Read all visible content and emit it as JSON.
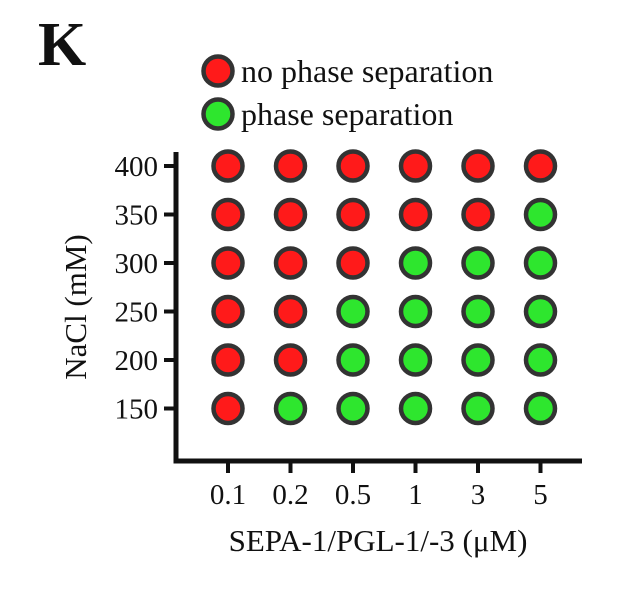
{
  "panel_label": "K",
  "colors": {
    "no_phase_separation": "#ff1a1a",
    "phase_separation": "#2ee62e",
    "marker_edge": "#333333",
    "axis": "#111111"
  },
  "chart_data": {
    "type": "scatter",
    "title": "",
    "xlabel": "SEPA-1/PGL-1/-3 (μM)",
    "ylabel": "NaCl (mM)",
    "x_categories": [
      "0.1",
      "0.2",
      "0.5",
      "1",
      "3",
      "5"
    ],
    "y_categories": [
      "400",
      "350",
      "300",
      "250",
      "200",
      "150"
    ],
    "legend": {
      "placement": "top",
      "entries": [
        {
          "key": "no",
          "label": "no phase separation",
          "color": "#ff1a1a"
        },
        {
          "key": "yes",
          "label": "phase separation",
          "color": "#2ee62e"
        }
      ]
    },
    "grid": false,
    "points": [
      {
        "x": "0.1",
        "y": "400",
        "phase_separation": false
      },
      {
        "x": "0.2",
        "y": "400",
        "phase_separation": false
      },
      {
        "x": "0.5",
        "y": "400",
        "phase_separation": false
      },
      {
        "x": "1",
        "y": "400",
        "phase_separation": false
      },
      {
        "x": "3",
        "y": "400",
        "phase_separation": false
      },
      {
        "x": "5",
        "y": "400",
        "phase_separation": false
      },
      {
        "x": "0.1",
        "y": "350",
        "phase_separation": false
      },
      {
        "x": "0.2",
        "y": "350",
        "phase_separation": false
      },
      {
        "x": "0.5",
        "y": "350",
        "phase_separation": false
      },
      {
        "x": "1",
        "y": "350",
        "phase_separation": false
      },
      {
        "x": "3",
        "y": "350",
        "phase_separation": false
      },
      {
        "x": "5",
        "y": "350",
        "phase_separation": true
      },
      {
        "x": "0.1",
        "y": "300",
        "phase_separation": false
      },
      {
        "x": "0.2",
        "y": "300",
        "phase_separation": false
      },
      {
        "x": "0.5",
        "y": "300",
        "phase_separation": false
      },
      {
        "x": "1",
        "y": "300",
        "phase_separation": true
      },
      {
        "x": "3",
        "y": "300",
        "phase_separation": true
      },
      {
        "x": "5",
        "y": "300",
        "phase_separation": true
      },
      {
        "x": "0.1",
        "y": "250",
        "phase_separation": false
      },
      {
        "x": "0.2",
        "y": "250",
        "phase_separation": false
      },
      {
        "x": "0.5",
        "y": "250",
        "phase_separation": true
      },
      {
        "x": "1",
        "y": "250",
        "phase_separation": true
      },
      {
        "x": "3",
        "y": "250",
        "phase_separation": true
      },
      {
        "x": "5",
        "y": "250",
        "phase_separation": true
      },
      {
        "x": "0.1",
        "y": "200",
        "phase_separation": false
      },
      {
        "x": "0.2",
        "y": "200",
        "phase_separation": false
      },
      {
        "x": "0.5",
        "y": "200",
        "phase_separation": true
      },
      {
        "x": "1",
        "y": "200",
        "phase_separation": true
      },
      {
        "x": "3",
        "y": "200",
        "phase_separation": true
      },
      {
        "x": "5",
        "y": "200",
        "phase_separation": true
      },
      {
        "x": "0.1",
        "y": "150",
        "phase_separation": false
      },
      {
        "x": "0.2",
        "y": "150",
        "phase_separation": true
      },
      {
        "x": "0.5",
        "y": "150",
        "phase_separation": true
      },
      {
        "x": "1",
        "y": "150",
        "phase_separation": true
      },
      {
        "x": "3",
        "y": "150",
        "phase_separation": true
      },
      {
        "x": "5",
        "y": "150",
        "phase_separation": true
      }
    ]
  }
}
